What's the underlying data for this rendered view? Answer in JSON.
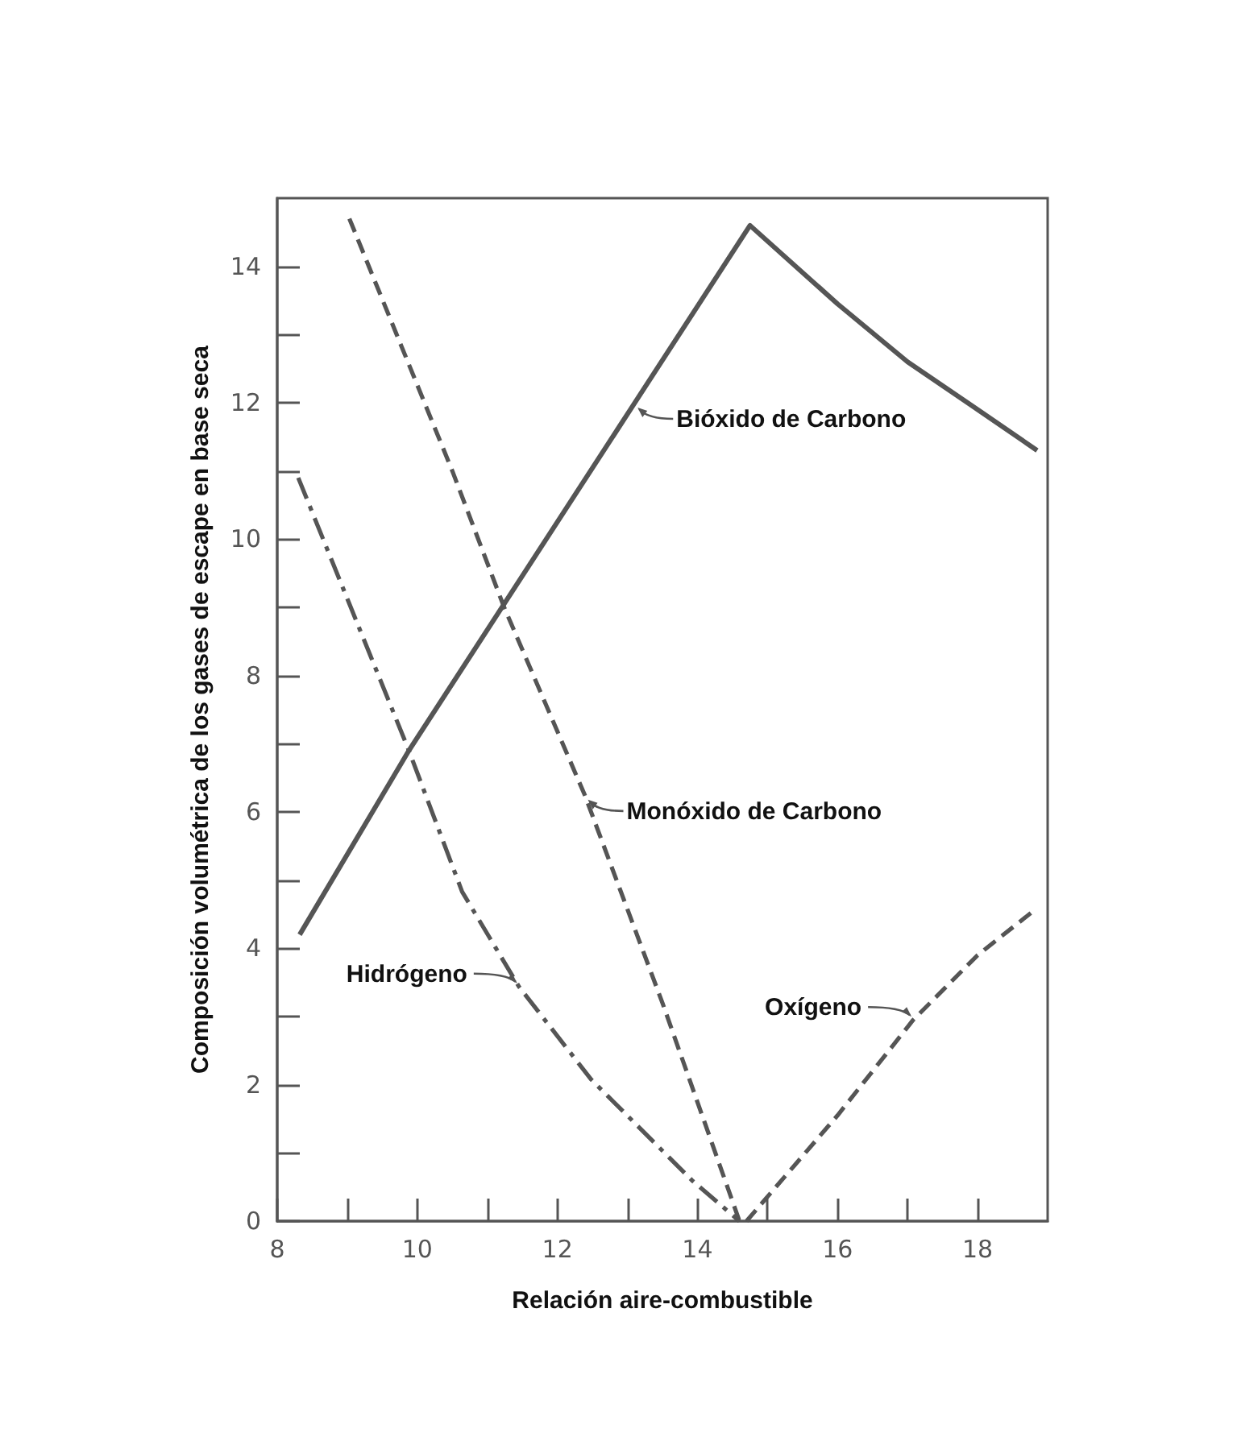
{
  "chart_data": {
    "type": "line",
    "xlabel": "Relación aire-combustible",
    "ylabel": "Composición volumétrica de los gases de escape en base seca",
    "series": [
      {
        "color": "#555555",
        "line_style": "solid",
        "x": [
          8.32,
          9.88,
          14.75,
          16,
          17,
          18,
          18.85
        ],
        "values": [
          4.2,
          6.9,
          14.6,
          13.45,
          12.6,
          11.9,
          11.3
        ]
      },
      {
        "color": "#555555",
        "line_style": "dashed",
        "x": [
          9.03,
          10.5,
          11.24,
          12.39,
          13.5,
          14.6
        ],
        "values": [
          14.7,
          11.0,
          9.0,
          6.25,
          3.2,
          0
        ]
      },
      {
        "color": "#555555",
        "line_style": "dashdot",
        "x": [
          8.3,
          9.88,
          10.64,
          11.45,
          12.48,
          13.93,
          14.6
        ],
        "values": [
          10.9,
          6.9,
          4.83,
          3.44,
          2.08,
          0.59,
          0
        ]
      },
      {
        "color": "#555555",
        "line_style": "dashed",
        "x": [
          14.7,
          16,
          17.08,
          18,
          18.8
        ],
        "values": [
          0,
          1.55,
          2.95,
          3.9,
          4.55
        ]
      }
    ],
    "annotations": [
      {
        "text": "Bióxido de Carbono",
        "x": 13.1,
        "y": 12.0
      },
      {
        "text": "Monóxido de Carbono",
        "x": 12.39,
        "y": 6.25
      },
      {
        "text": "Hidrógeno",
        "x": 11.45,
        "y": 3.44
      },
      {
        "text": "Oxígeno",
        "x": 17.08,
        "y": 2.95
      }
    ],
    "xlim": [
      8,
      19
    ],
    "xticks": [
      8,
      {
        "value": 9,
        "label": null
      },
      10,
      {
        "value": 11,
        "label": null
      },
      12,
      {
        "value": 13,
        "label": null
      },
      14,
      {
        "value": 15,
        "label": null
      },
      16,
      {
        "value": 17,
        "label": null
      },
      18
    ],
    "ylim": [
      0,
      15
    ],
    "yticks": [
      0,
      {
        "value": 1,
        "label": null
      },
      2,
      {
        "value": 3,
        "label": null
      },
      4,
      {
        "value": 5,
        "label": null
      },
      6,
      {
        "value": 7,
        "label": null
      },
      8,
      {
        "value": 9,
        "label": null
      },
      10,
      {
        "value": 11,
        "label": null
      },
      12,
      {
        "value": 13,
        "label": null
      },
      14
    ],
    "grid": false,
    "marker": "none"
  }
}
